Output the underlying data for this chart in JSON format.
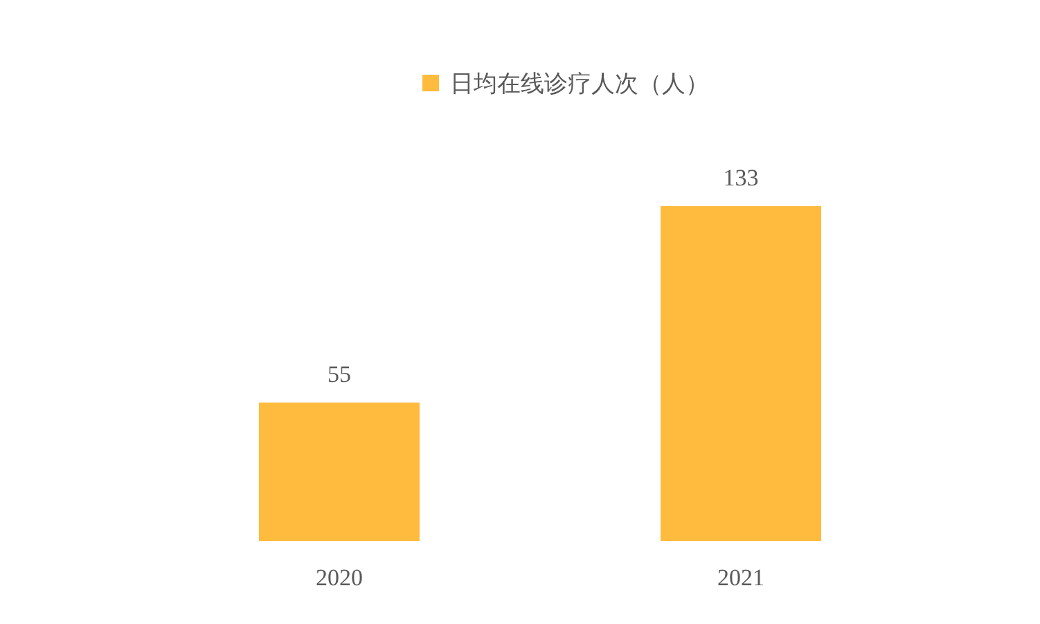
{
  "chart_data": {
    "type": "bar",
    "categories": [
      "2020",
      "2021"
    ],
    "series": [
      {
        "name": "日均在线诊疗人次（人）",
        "color": "#ffbb3d",
        "values": [
          55,
          133
        ]
      }
    ],
    "data_labels": true,
    "legend": "top"
  }
}
